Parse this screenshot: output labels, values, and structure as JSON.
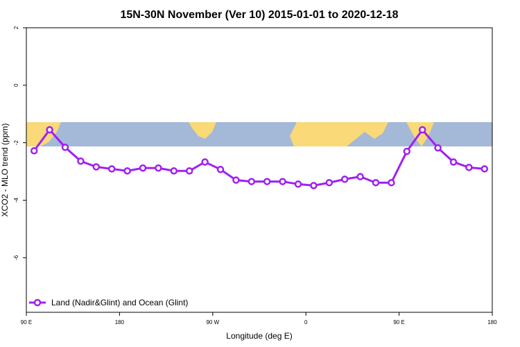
{
  "chart_data": {
    "type": "line",
    "title": "15N-30N November (Ver 10)   2015-01-01 to 2020-12-18",
    "x_label": "Longitude (deg E)",
    "y_label": "XCO2 - MLO trend (ppm)",
    "x": [
      97.5,
      112.5,
      127.5,
      142.5,
      157.5,
      172.5,
      187.5,
      202.5,
      217.5,
      232.5,
      247.5,
      262.5,
      277.5,
      292.5,
      307.5,
      322.5,
      337.5,
      352.5,
      367.5,
      382.5,
      397.5,
      412.5,
      427.5,
      442.5,
      457.5,
      472.5,
      487.5,
      502.5,
      517.5,
      532.5
    ],
    "series": [
      {
        "name": "Land (Nadir&Glint) and Ocean (Glint)",
        "color": "#a020f0",
        "values": [
          -2.28,
          -1.55,
          -2.16,
          -2.64,
          -2.84,
          -2.91,
          -2.98,
          -2.88,
          -2.88,
          -2.98,
          -2.98,
          -2.67,
          -2.93,
          -3.3,
          -3.35,
          -3.35,
          -3.35,
          -3.44,
          -3.49,
          -3.39,
          -3.27,
          -3.18,
          -3.39,
          -3.39,
          -2.3,
          -1.55,
          -2.18,
          -2.67,
          -2.86,
          -2.91
        ]
      }
    ],
    "xlim": [
      90,
      540
    ],
    "xticks": [
      {
        "value": 90,
        "label": "90 E"
      },
      {
        "value": 180,
        "label": "180"
      },
      {
        "value": 270,
        "label": "90 W"
      },
      {
        "value": 360,
        "label": "0"
      },
      {
        "value": 450,
        "label": "90 E"
      },
      {
        "value": 540,
        "label": "180"
      }
    ],
    "ylim": [
      -7.9,
      2
    ],
    "yticks": [
      2,
      0,
      -2,
      -4,
      -6
    ],
    "legend": "bottomleft"
  }
}
